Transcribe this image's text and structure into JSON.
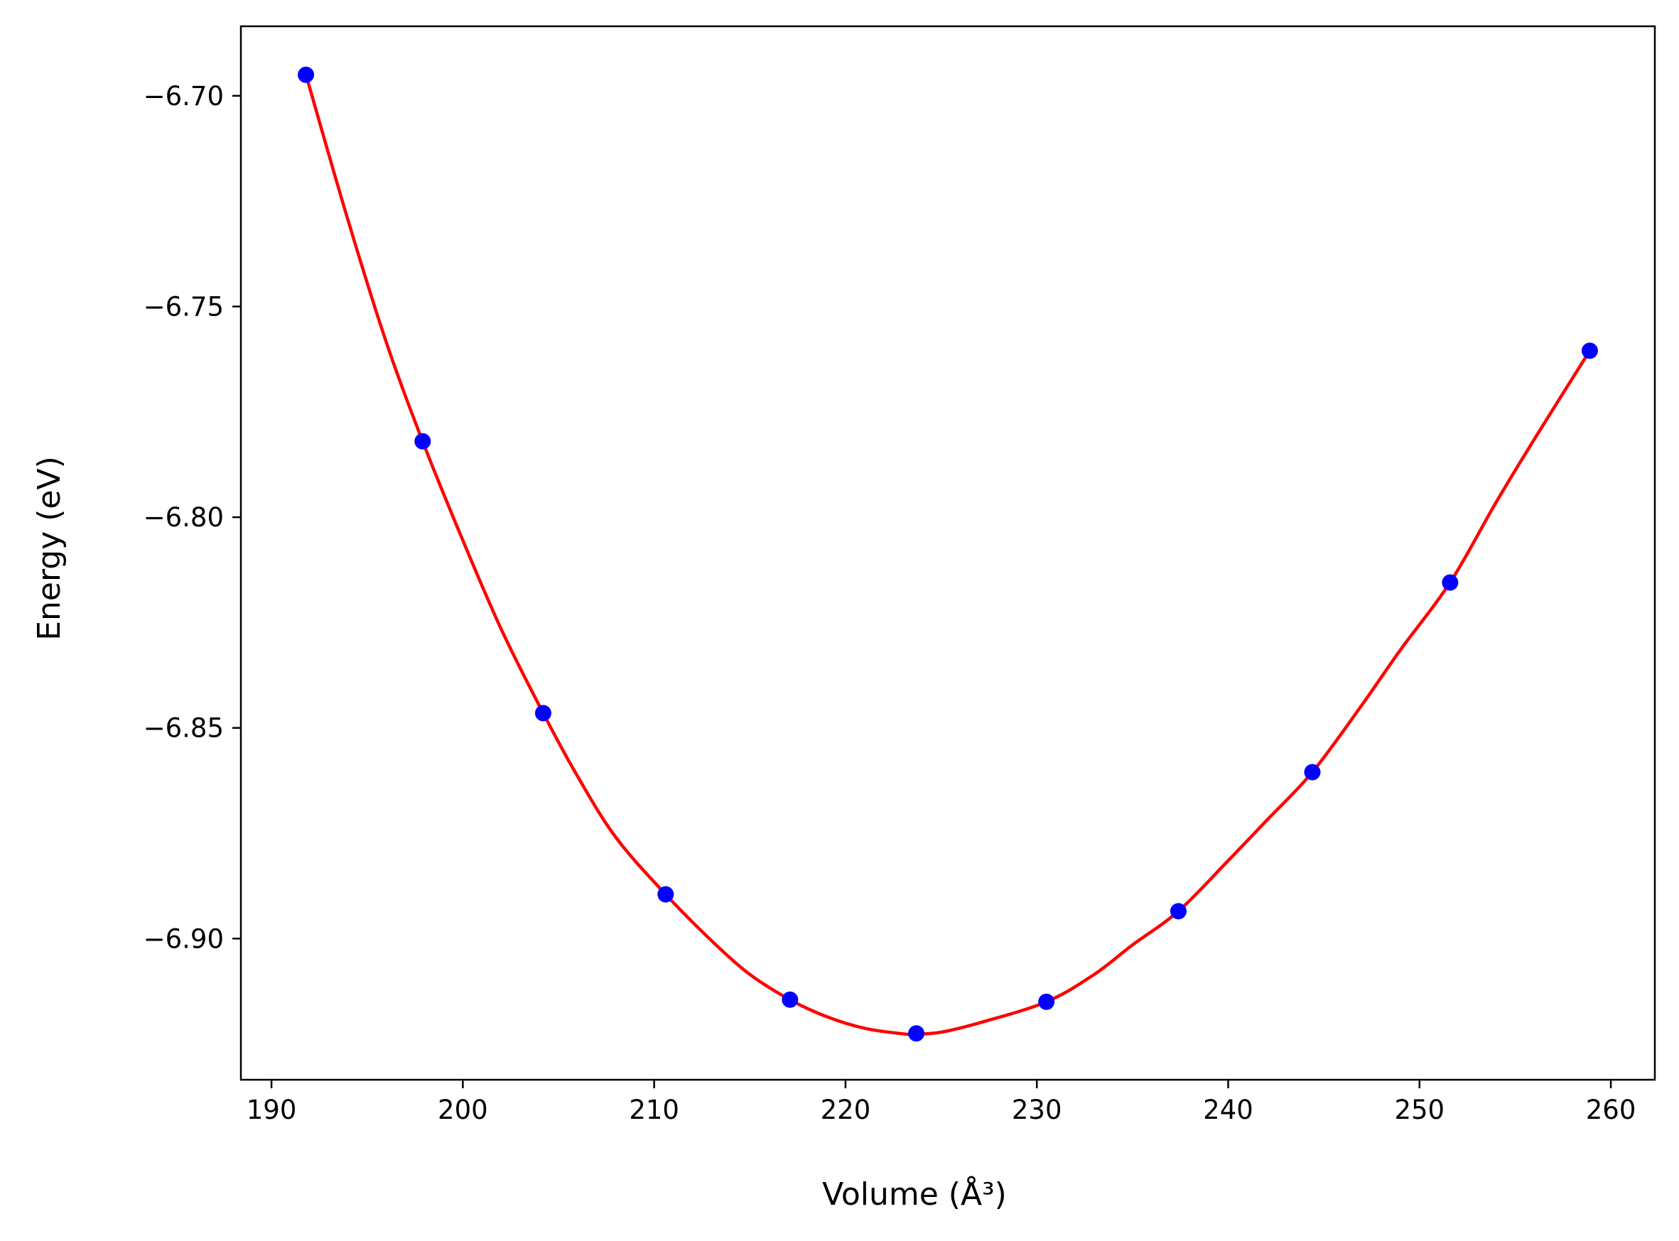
{
  "chart_data": {
    "type": "line",
    "title": "",
    "xlabel": "Volume (Å³)",
    "ylabel": "Energy (eV)",
    "xlim": [
      188.4,
      262.3
    ],
    "ylim": [
      -6.9335,
      -6.6835
    ],
    "xticks": [
      190,
      200,
      210,
      220,
      230,
      240,
      250,
      260
    ],
    "xtick_labels": [
      "190",
      "200",
      "210",
      "220",
      "230",
      "240",
      "250",
      "260"
    ],
    "yticks": [
      -6.7,
      -6.75,
      -6.8,
      -6.85,
      -6.9
    ],
    "ytick_labels": [
      "−6.70",
      "−6.75",
      "−6.80",
      "−6.85",
      "−6.90"
    ],
    "grid": false,
    "series": [
      {
        "kind": "points",
        "color": "#0000ff",
        "x": [
          191.8,
          197.9,
          204.2,
          210.6,
          217.1,
          223.7,
          230.5,
          237.4,
          244.4,
          251.6,
          258.9
        ],
        "y": [
          -6.695,
          -6.782,
          -6.8465,
          -6.8895,
          -6.9145,
          -6.9225,
          -6.915,
          -6.8935,
          -6.8605,
          -6.8155,
          -6.7605
        ]
      },
      {
        "kind": "fit-curve",
        "color": "#ff0000",
        "x": [
          191.8,
          194.0,
          196.0,
          197.9,
          200.0,
          202.0,
          204.2,
          206.0,
          208.0,
          210.6,
          213.0,
          215.0,
          217.1,
          219.0,
          221.0,
          223.0,
          223.7,
          225.0,
          227.0,
          230.5,
          233.0,
          235.0,
          237.4,
          240.0,
          242.0,
          244.4,
          247.0,
          249.0,
          251.6,
          254.0,
          256.0,
          258.9
        ],
        "y": [
          -6.695,
          -6.7295,
          -6.7585,
          -6.782,
          -6.8055,
          -6.8265,
          -6.8465,
          -6.8615,
          -6.876,
          -6.8895,
          -6.9005,
          -6.9085,
          -6.9145,
          -6.9185,
          -6.9213,
          -6.9226,
          -6.9227,
          -6.9222,
          -6.92,
          -6.915,
          -6.9085,
          -6.9015,
          -6.8935,
          -6.8815,
          -6.872,
          -6.8605,
          -6.8445,
          -6.8315,
          -6.8155,
          -6.7965,
          -6.7815,
          -6.7605
        ]
      }
    ]
  }
}
